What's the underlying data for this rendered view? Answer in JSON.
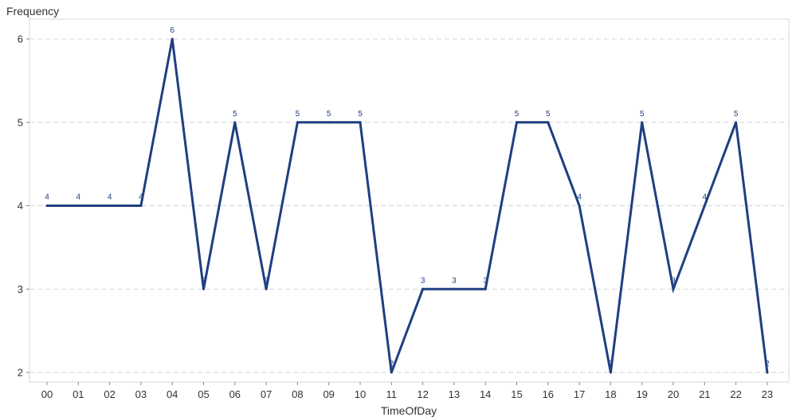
{
  "chart_data": {
    "type": "line",
    "title": "",
    "xlabel": "TimeOfDay",
    "ylabel": "Frequency",
    "categories": [
      "00",
      "01",
      "02",
      "03",
      "04",
      "05",
      "06",
      "07",
      "08",
      "09",
      "10",
      "11",
      "12",
      "13",
      "14",
      "15",
      "16",
      "17",
      "18",
      "19",
      "20",
      "21",
      "22",
      "23"
    ],
    "series": [
      {
        "values": [
          4,
          4,
          4,
          4,
          6,
          3,
          5,
          3,
          5,
          5,
          5,
          2,
          3,
          3,
          3,
          5,
          5,
          4,
          2,
          5,
          3,
          4,
          5,
          2
        ]
      }
    ],
    "ylim": [
      2,
      6
    ],
    "yticks": [
      2,
      3,
      4,
      5,
      6
    ],
    "grid": true,
    "line_color": "#1f3f80",
    "grid_color": "#d3d3d3",
    "frame_color": "#d9d9d9"
  }
}
